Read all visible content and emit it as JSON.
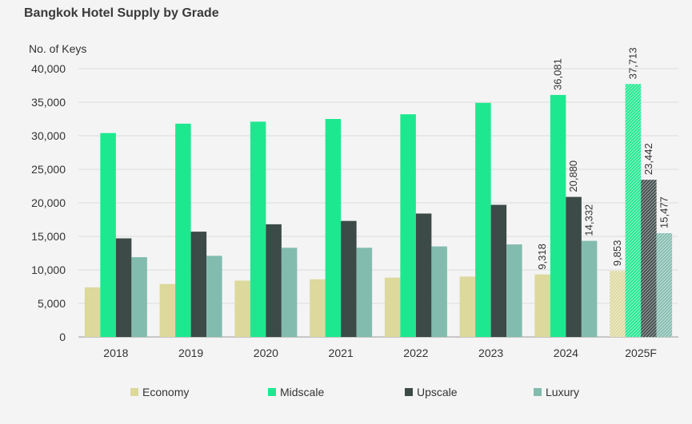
{
  "chart_data": {
    "type": "bar",
    "title": "Bangkok Hotel Supply by Grade",
    "ylabel": "No. of Keys",
    "xlabel": "",
    "ylim": [
      0,
      40000
    ],
    "yticks": [
      "0",
      "5,000",
      "10,000",
      "15,000",
      "20,000",
      "25,000",
      "30,000",
      "35,000",
      "40,000"
    ],
    "ytick_values": [
      0,
      5000,
      10000,
      15000,
      20000,
      25000,
      30000,
      35000,
      40000
    ],
    "grid": true,
    "legend_position": "bottom",
    "categories": [
      "2018",
      "2019",
      "2020",
      "2021",
      "2022",
      "2023",
      "2024",
      "2025F"
    ],
    "forecast_categories": [
      "2025F"
    ],
    "series": [
      {
        "name": "Economy",
        "color": "#ddd89c",
        "values": [
          7400,
          7900,
          8400,
          8600,
          8850,
          9000,
          9318,
          9853
        ],
        "labels": [
          "",
          "",
          "",
          "",
          "",
          "",
          "9,318",
          "9,853"
        ]
      },
      {
        "name": "Midscale",
        "color": "#1ee88f",
        "values": [
          30400,
          31800,
          32100,
          32500,
          33200,
          34900,
          36081,
          37713
        ],
        "labels": [
          "",
          "",
          "",
          "",
          "",
          "",
          "36,081",
          "37,713"
        ]
      },
      {
        "name": "Upscale",
        "color": "#3c4a48",
        "values": [
          14700,
          15700,
          16800,
          17300,
          18400,
          19700,
          20880,
          23442
        ],
        "labels": [
          "",
          "",
          "",
          "",
          "",
          "",
          "20,880",
          "23,442"
        ]
      },
      {
        "name": "Luxury",
        "color": "#82bcae",
        "values": [
          11900,
          12100,
          13300,
          13300,
          13500,
          13800,
          14332,
          15477
        ],
        "labels": [
          "",
          "",
          "",
          "",
          "",
          "",
          "14,332",
          "15,477"
        ]
      }
    ]
  }
}
